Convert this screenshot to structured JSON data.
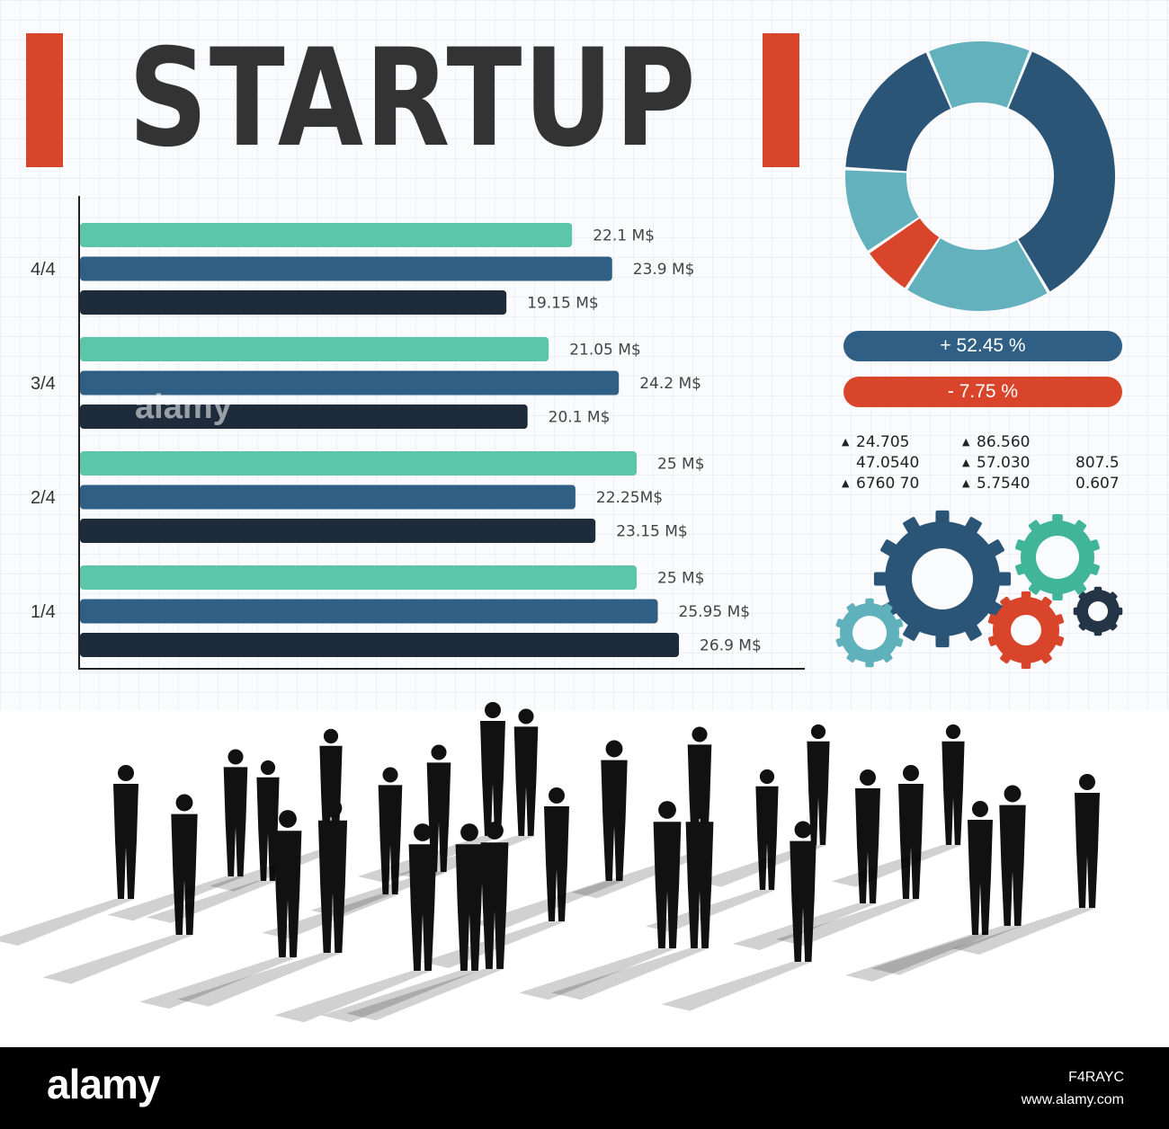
{
  "title": "STARTUP",
  "colors": {
    "accent_red": "#d8452a",
    "title_text": "#333333",
    "teal": "#5cc6a8",
    "blue": "#2f5f85",
    "navy": "#1d2b3b",
    "donut_dark": "#2b5577",
    "donut_light": "#62b1bd",
    "donut_red": "#d8452a",
    "pill_positive": "#2f5f85",
    "pill_negative": "#d8452a",
    "gear_navy": "#2b5577",
    "gear_teal": "#41b59a",
    "gear_red": "#d8452a",
    "gear_dark": "#253548",
    "gear_light": "#5fb1bb"
  },
  "chart_data": [
    {
      "type": "bar",
      "orientation": "horizontal",
      "categories": [
        "4/4",
        "3/4",
        "2/4",
        "1/4"
      ],
      "series": [
        {
          "values": [
            22.1,
            21.05,
            25,
            25
          ],
          "labels": [
            "22.1 M$",
            "21.05 M$",
            "25 M$",
            "25 M$"
          ]
        },
        {
          "values": [
            23.9,
            24.2,
            22.25,
            25.95
          ],
          "labels": [
            "23.9 M$",
            "24.2 M$",
            "22.25M$",
            "25.95 M$"
          ]
        },
        {
          "values": [
            19.15,
            20.1,
            23.15,
            26.9
          ],
          "labels": [
            "19.15 M$",
            "20.1 M$",
            "23.15 M$",
            "26.9 M$"
          ]
        }
      ],
      "xlim": [
        0,
        30
      ],
      "grid": true
    },
    {
      "type": "pie",
      "donut": true,
      "slices": [
        {
          "value": 34,
          "color": "#2b5577"
        },
        {
          "value": 17,
          "color": "#62b1bd"
        },
        {
          "value": 6,
          "color": "#d8452a"
        },
        {
          "value": 10,
          "color": "#62b1bd"
        },
        {
          "value": 17,
          "color": "#2b5577"
        },
        {
          "value": 12,
          "color": "#62b1bd"
        }
      ],
      "start_angle_deg": 22
    }
  ],
  "pills": {
    "positive": "+ 52.45 %",
    "negative": "- 7.75 %"
  },
  "stats": {
    "col1": [
      {
        "value": "24.705",
        "arrow": true
      },
      {
        "value": "47.0540",
        "arrow": false
      },
      {
        "value": "6760 70",
        "arrow": true
      }
    ],
    "col2": [
      {
        "value": "86.560",
        "arrow": true
      },
      {
        "value": "57.030",
        "arrow": true
      },
      {
        "value": "5.7540",
        "arrow": true
      }
    ],
    "col3": [
      {
        "value": "807.5",
        "arrow": false
      },
      {
        "value": "0.607",
        "arrow": false
      }
    ],
    "arrow_glyph": "▲"
  },
  "gears": [
    {
      "name": "gear-large-navy-icon",
      "color": "#2b5577"
    },
    {
      "name": "gear-teal-icon",
      "color": "#41b59a"
    },
    {
      "name": "gear-red-icon",
      "color": "#d8452a"
    },
    {
      "name": "gear-small-dark-icon",
      "color": "#253548"
    },
    {
      "name": "gear-small-light-icon",
      "color": "#5fb1bb"
    }
  ],
  "footer": {
    "logo": "alamy",
    "image_id": "F4RAYC",
    "url": "www.alamy.com"
  },
  "watermark": "alamy"
}
